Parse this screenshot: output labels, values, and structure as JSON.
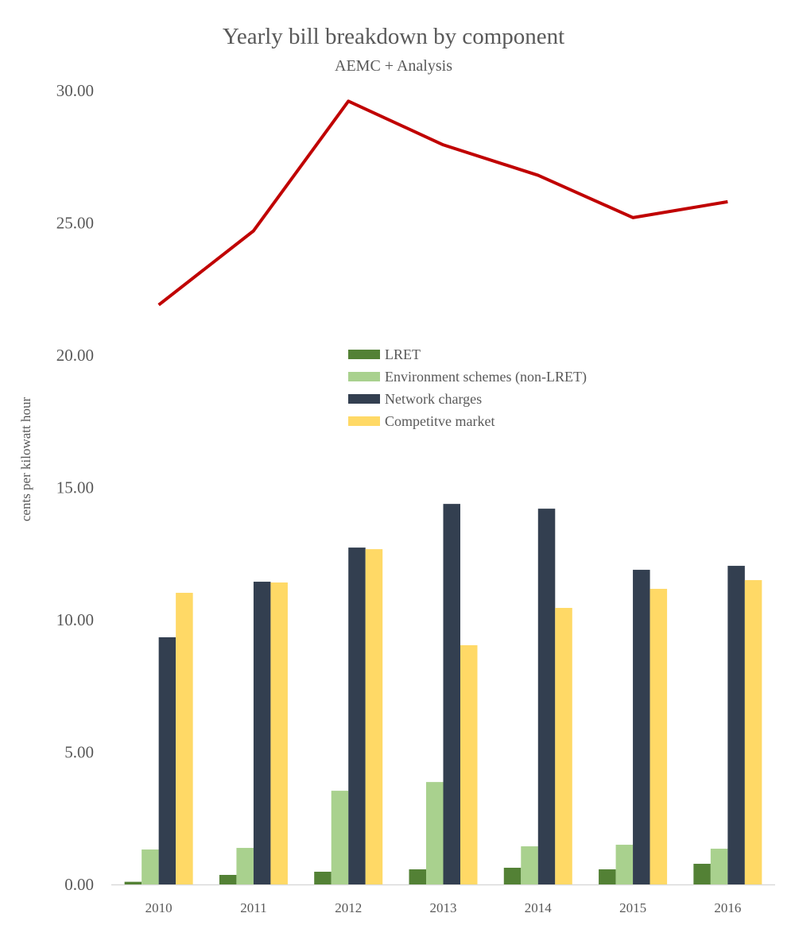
{
  "chart_data": {
    "type": "bar",
    "title": "Yearly bill breakdown by component",
    "subtitle": "AEMC + Analysis",
    "xlabel": "",
    "ylabel": "cents per kilowatt hour",
    "ylim": [
      0,
      30
    ],
    "yticks": [
      "0.00",
      "5.00",
      "10.00",
      "15.00",
      "20.00",
      "25.00",
      "30.00"
    ],
    "grid": false,
    "legend_position": "center",
    "categories": [
      "2010",
      "2011",
      "2012",
      "2013",
      "2014",
      "2015",
      "2016"
    ],
    "series": [
      {
        "name": "LRET",
        "kind": "bar",
        "color": "#538135",
        "values": [
          0.1,
          0.36,
          0.48,
          0.57,
          0.63,
          0.57,
          0.78
        ]
      },
      {
        "name": "Environment schemes (non-LRET)",
        "kind": "bar",
        "color": "#a9d18e",
        "values": [
          1.32,
          1.38,
          3.54,
          3.87,
          1.44,
          1.5,
          1.35
        ]
      },
      {
        "name": "Network charges",
        "kind": "bar",
        "color": "#333f50",
        "values": [
          9.34,
          11.44,
          12.73,
          14.38,
          14.2,
          11.89,
          12.04
        ]
      },
      {
        "name": "Competitve market",
        "kind": "bar",
        "color": "#ffd966",
        "values": [
          11.02,
          11.41,
          12.67,
          9.04,
          10.45,
          11.17,
          11.5
        ]
      },
      {
        "kind": "line",
        "color": "#c00000",
        "values": [
          21.9,
          24.7,
          29.6,
          27.95,
          26.8,
          25.2,
          25.8
        ]
      }
    ]
  }
}
